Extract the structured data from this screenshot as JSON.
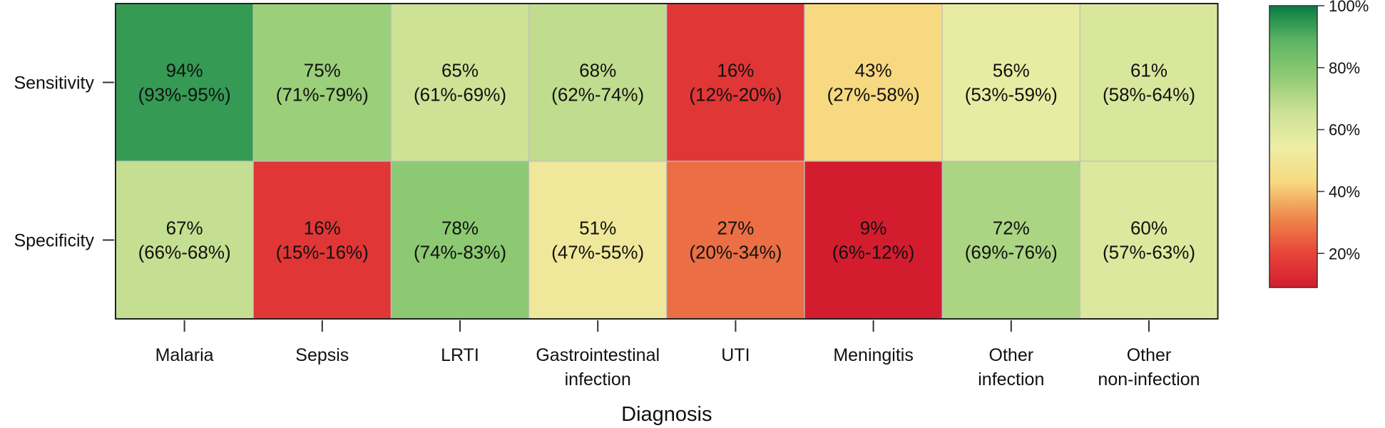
{
  "chart_data": {
    "type": "heatmap",
    "xlabel": "Diagnosis",
    "rows": [
      "Sensitivity",
      "Specificity"
    ],
    "columns": [
      [
        "Malaria"
      ],
      [
        "Sepsis"
      ],
      [
        "LRTI"
      ],
      [
        "Gastrointestinal",
        "infection"
      ],
      [
        "UTI"
      ],
      [
        "Meningitis"
      ],
      [
        "Other",
        "infection"
      ],
      [
        "Other",
        "non-infection"
      ]
    ],
    "values": [
      [
        94,
        75,
        65,
        68,
        16,
        43,
        56,
        61
      ],
      [
        67,
        16,
        78,
        51,
        27,
        9,
        72,
        60
      ]
    ],
    "labels": [
      [
        "94%",
        "75%",
        "65%",
        "68%",
        "16%",
        "43%",
        "56%",
        "61%"
      ],
      [
        "67%",
        "16%",
        "78%",
        "51%",
        "27%",
        "9%",
        "72%",
        "60%"
      ]
    ],
    "intervals": [
      [
        "(93%-95%)",
        "(71%-79%)",
        "(61%-69%)",
        "(62%-74%)",
        "(12%-20%)",
        "(27%-58%)",
        "(53%-59%)",
        "(58%-64%)"
      ],
      [
        "(66%-68%)",
        "(15%-16%)",
        "(74%-83%)",
        "(47%-55%)",
        "(20%-34%)",
        "(6%-12%)",
        "(69%-76%)",
        "(57%-63%)"
      ]
    ],
    "colorbar": {
      "range": [
        9,
        100
      ],
      "ticks": [
        20,
        40,
        60,
        80,
        100
      ],
      "tick_labels": [
        "20%",
        "40%",
        "60%",
        "80%",
        "100%"
      ],
      "colors": [
        "#d31d2f",
        "#e8463a",
        "#ee8a4d",
        "#f7da82",
        "#eceea5",
        "#cbe195",
        "#8fca73",
        "#5db563",
        "#077c43"
      ]
    }
  }
}
